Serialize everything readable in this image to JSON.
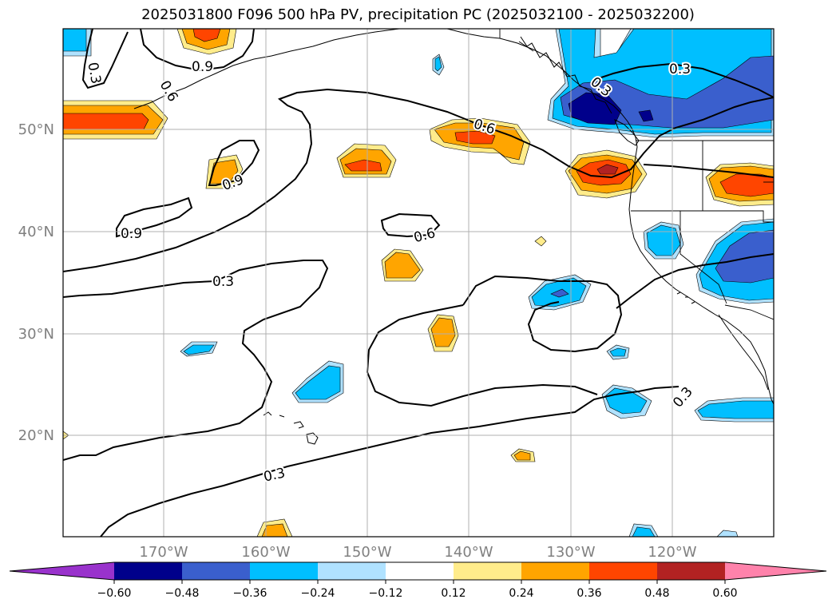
{
  "title": "2025031800 F096 500 hPa PV, precipitation PC (2025032100 - 2025032200)",
  "map": {
    "lat_labels": [
      "50°N",
      "40°N",
      "30°N",
      "20°N"
    ],
    "lon_labels": [
      "170°W",
      "160°W",
      "150°W",
      "140°W",
      "130°W",
      "120°W"
    ],
    "contour_labels": [
      "0.3",
      "0.6",
      "0.9",
      "0.9",
      "0.9",
      "0.3",
      "0.3",
      "0.6",
      "0.6",
      "0.3",
      "0.3",
      "0.3"
    ]
  },
  "colorbar": {
    "ticks": [
      "−0.60",
      "−0.48",
      "−0.36",
      "−0.24",
      "−0.12",
      "0.12",
      "0.24",
      "0.36",
      "0.48",
      "0.60"
    ],
    "colors": [
      "#9932cc",
      "#00008b",
      "#3a5fcd",
      "#00bfff",
      "#b0e2ff",
      "#ffffff",
      "#ffec8b",
      "#ffa500",
      "#ff4500",
      "#b22222",
      "#ff82ab"
    ]
  },
  "palette": {
    "c_light_yellow": "#ffec8b",
    "c_orange": "#ffa500",
    "c_red_orange": "#ff4500",
    "c_dark_red": "#b22222",
    "c_light_blue": "#b0e2ff",
    "c_sky_blue": "#00bfff",
    "c_royal_blue": "#3a5fcd",
    "c_navy": "#00008b"
  }
}
